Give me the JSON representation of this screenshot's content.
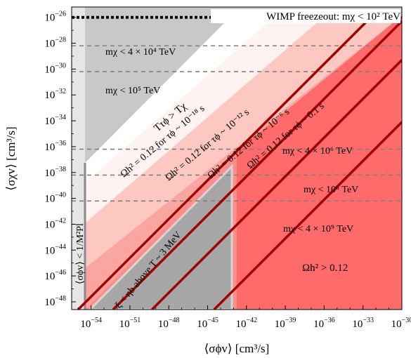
{
  "chart_data": {
    "type": "area",
    "xscale": "log",
    "yscale": "log",
    "xlim_exp": [
      -55.5,
      -30
    ],
    "ylim_exp": [
      -48.6,
      -25.2
    ],
    "xlabel": "⟨σϕv⟩ [cm³/s]",
    "ylabel": "⟨σχv⟩ [cm³/s]",
    "x_ticks": [
      {
        "exp": -54,
        "label": "10",
        "sup": "−54"
      },
      {
        "exp": -51,
        "label": "10",
        "sup": "−51"
      },
      {
        "exp": -48,
        "label": "10",
        "sup": "−48"
      },
      {
        "exp": -45,
        "label": "10",
        "sup": "−45"
      },
      {
        "exp": -42,
        "label": "10",
        "sup": "−42"
      },
      {
        "exp": -39,
        "label": "10",
        "sup": "−39"
      },
      {
        "exp": -36,
        "label": "10",
        "sup": "−36"
      },
      {
        "exp": -33,
        "label": "10",
        "sup": "−33"
      },
      {
        "exp": -30,
        "label": "10",
        "sup": "−30"
      }
    ],
    "y_ticks": [
      {
        "exp": -26,
        "label": "10",
        "sup": "−26"
      },
      {
        "exp": -28,
        "label": "10",
        "sup": "−28"
      },
      {
        "exp": -30,
        "label": "10",
        "sup": "−30"
      },
      {
        "exp": -32,
        "label": "10",
        "sup": "−32"
      },
      {
        "exp": -34,
        "label": "10",
        "sup": "−34"
      },
      {
        "exp": -36,
        "label": "10",
        "sup": "−36"
      },
      {
        "exp": -38,
        "label": "10",
        "sup": "−38"
      },
      {
        "exp": -40,
        "label": "10",
        "sup": "−40"
      },
      {
        "exp": -42,
        "label": "10",
        "sup": "−42"
      },
      {
        "exp": -44,
        "label": "10",
        "sup": "−44"
      },
      {
        "exp": -46,
        "label": "10",
        "sup": "−46"
      },
      {
        "exp": -48,
        "label": "10",
        "sup": "−48"
      }
    ],
    "mass_bounds": [
      {
        "y_exp": -26,
        "label": "WIMP freezeout: mχ < 10² TeV",
        "style": "dotted"
      },
      {
        "y_exp": -28.2,
        "label": "mχ < 4 × 10⁴ TeV",
        "style": "dashed"
      },
      {
        "y_exp": -30.2,
        "label": "mχ < 10⁵ TeV",
        "style": "dashed"
      },
      {
        "y_exp": -36.2,
        "label": "mχ < 4 × 10⁶ TeV",
        "style": "dashed"
      },
      {
        "y_exp": -38.2,
        "label": "mχ < 10⁸ TeV",
        "style": "dashed"
      },
      {
        "y_exp": -40.2,
        "label": "mχ < 4 × 10⁹ TeV",
        "style": "dashed"
      }
    ],
    "relic_lines": [
      {
        "label": "Ωh² = 0.12 for τϕ ~ 10⁻¹⁸ s",
        "x_exp_at_bottom": -55.0
      },
      {
        "label": "Ωh² = 0.12 for τϕ ~ 10⁻¹² s",
        "x_exp_at_bottom": -52.3
      },
      {
        "label": "Ωh² = 0.12 for τϕ ~ 10⁻⁶ s",
        "x_exp_at_bottom": -49.3
      },
      {
        "label": "Ωh² = 0.12 for τϕ ~ 0.1 s",
        "x_exp_at_bottom": -44.5
      }
    ],
    "regions": [
      {
        "label": "Tτϕ > Tχ"
      },
      {
        "label": "ξ < ηb above T ~ 3 MeV",
        "x_exp_range": [
          -55.0,
          -43.8
        ],
        "top_y_exp": -36.5
      },
      {
        "label": "Ωh² > 0.12",
        "color": "#ff6b6b"
      },
      {
        "label": "⟨σϕv⟩ < 1/M²Pl",
        "x_exp_max": -55.0
      }
    ]
  }
}
